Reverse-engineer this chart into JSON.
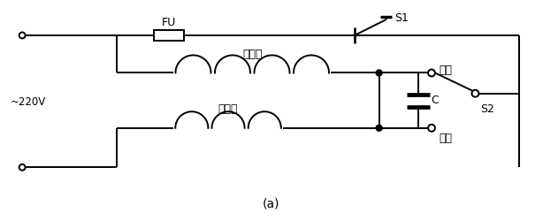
{
  "title": "(a)",
  "label_220v": "~220V",
  "label_fu": "FU",
  "label_s1": "S1",
  "label_s2": "S2",
  "label_main": "主绕组",
  "label_aux": "副绕组",
  "label_cap": "C",
  "label_fwd": "正转",
  "label_rev": "反转",
  "line_color": "#000000",
  "bg_color": "#ffffff",
  "lw": 1.4
}
